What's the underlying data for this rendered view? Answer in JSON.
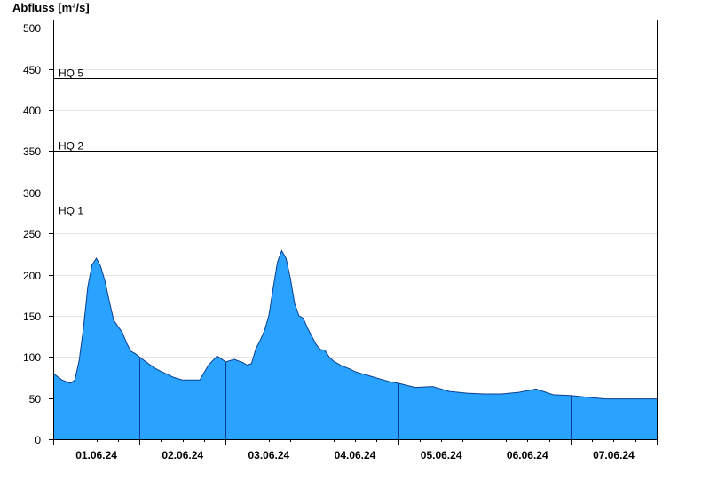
{
  "chart_data": {
    "type": "area",
    "title": "",
    "ylabel": "Abfluss [m³/s]",
    "xlabel": "",
    "ylim": [
      0,
      510
    ],
    "yticks": [
      0,
      50,
      100,
      150,
      200,
      250,
      300,
      350,
      400,
      450,
      500
    ],
    "xlim": [
      0,
      7
    ],
    "xticks": [
      "01.06.24",
      "02.06.24",
      "03.06.24",
      "04.06.24",
      "05.06.24",
      "06.06.24",
      "07.06.24"
    ],
    "grid": true,
    "fill_color": "#29a3ff",
    "line_color": "#0a3f8f",
    "thresholds": [
      {
        "label": "HQ 1",
        "value": 272
      },
      {
        "label": "HQ 2",
        "value": 350
      },
      {
        "label": "HQ 5",
        "value": 439
      }
    ],
    "series": [
      {
        "x": [
          0.0,
          0.1,
          0.2,
          0.25,
          0.3,
          0.35,
          0.4,
          0.45,
          0.5,
          0.55,
          0.6,
          0.65,
          0.7,
          0.75,
          0.8,
          0.85,
          0.9,
          0.95,
          1.0,
          1.1,
          1.2,
          1.3,
          1.4,
          1.5,
          1.6,
          1.7,
          1.8,
          1.9,
          2.0,
          2.1,
          2.2,
          2.25,
          2.3,
          2.35,
          2.4,
          2.45,
          2.5,
          2.55,
          2.6,
          2.65,
          2.7,
          2.75,
          2.8,
          2.85,
          2.9,
          2.95,
          3.0,
          3.05,
          3.1,
          3.15,
          3.2,
          3.25,
          3.3,
          3.35,
          3.4,
          3.45,
          3.5,
          3.6,
          3.7,
          3.8,
          3.9,
          4.0,
          4.2,
          4.4,
          4.6,
          4.8,
          5.0,
          5.2,
          5.4,
          5.6,
          5.8,
          6.0,
          6.1,
          6.2,
          6.3,
          6.4,
          6.5,
          6.6,
          6.7,
          6.8,
          6.9,
          7.0
        ],
        "y": [
          80,
          72,
          68,
          72,
          95,
          135,
          185,
          212,
          220,
          210,
          192,
          168,
          145,
          137,
          130,
          117,
          107,
          104,
          100,
          92,
          85,
          80,
          75,
          72,
          72,
          72,
          90,
          101,
          94,
          97,
          93,
          90,
          92,
          110,
          120,
          132,
          150,
          183,
          215,
          229,
          220,
          196,
          165,
          150,
          147,
          135,
          125,
          115,
          109,
          108,
          100,
          95,
          92,
          89,
          87,
          85,
          82,
          79,
          76,
          73,
          70,
          68,
          63,
          64,
          58,
          56,
          55,
          55,
          57,
          61,
          54,
          53,
          52,
          51,
          50,
          49,
          49,
          49,
          49,
          49,
          49,
          49
        ]
      }
    ]
  }
}
